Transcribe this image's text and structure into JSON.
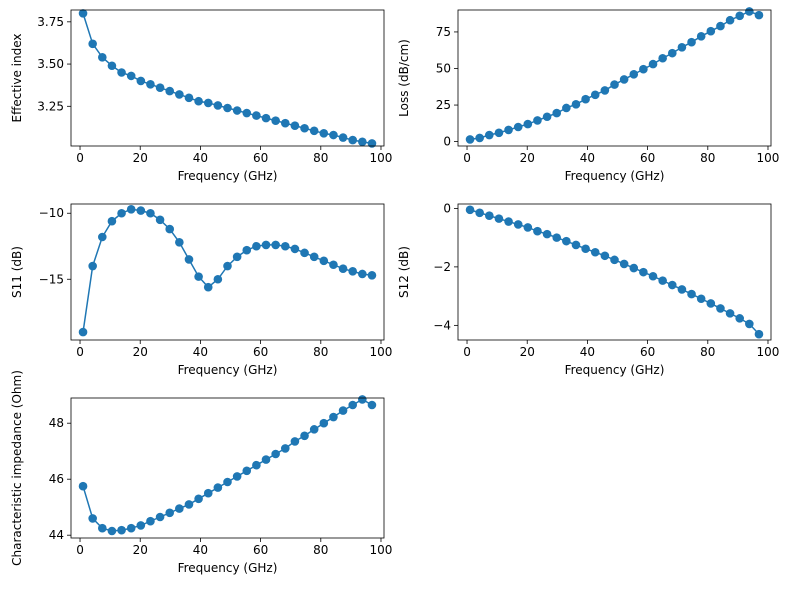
{
  "colors": {
    "series": "#1f77b4",
    "axes": "#000000",
    "background": "#ffffff"
  },
  "chart_data": [
    {
      "id": "effective-index",
      "type": "line",
      "markers": true,
      "xlabel": "Frequency (GHz)",
      "ylabel": "Effective index",
      "xlim": [
        -3,
        101
      ],
      "ylim": [
        3.015,
        3.82
      ],
      "xticks": [
        0,
        20,
        40,
        60,
        80,
        100
      ],
      "yticks": [
        3.25,
        3.5,
        3.75
      ],
      "ytick_labels": [
        "3.25",
        "3.50",
        "3.75"
      ],
      "x": [
        1,
        4.2,
        7.4,
        10.6,
        13.8,
        17,
        20.2,
        23.4,
        26.6,
        29.8,
        33,
        36.2,
        39.4,
        42.6,
        45.8,
        49,
        52.2,
        55.4,
        58.6,
        61.8,
        65,
        68.2,
        71.4,
        74.6,
        77.8,
        81,
        84.2,
        87.4,
        90.6,
        93.8,
        97
      ],
      "y": [
        3.8,
        3.62,
        3.54,
        3.49,
        3.45,
        3.43,
        3.4,
        3.38,
        3.36,
        3.34,
        3.32,
        3.3,
        3.28,
        3.27,
        3.255,
        3.24,
        3.225,
        3.21,
        3.195,
        3.18,
        3.165,
        3.15,
        3.135,
        3.12,
        3.105,
        3.09,
        3.08,
        3.065,
        3.05,
        3.04,
        3.03
      ]
    },
    {
      "id": "loss",
      "type": "line",
      "markers": true,
      "xlabel": "Frequency (GHz)",
      "ylabel": "Loss (dB/cm)",
      "xlim": [
        -3,
        101
      ],
      "ylim": [
        -3,
        90
      ],
      "xticks": [
        0,
        20,
        40,
        60,
        80,
        100
      ],
      "yticks": [
        0,
        25,
        50,
        75
      ],
      "ytick_labels": [
        "0",
        "25",
        "50",
        "75"
      ],
      "x": [
        1,
        4.2,
        7.4,
        10.6,
        13.8,
        17,
        20.2,
        23.4,
        26.6,
        29.8,
        33,
        36.2,
        39.4,
        42.6,
        45.8,
        49,
        52.2,
        55.4,
        58.6,
        61.8,
        65,
        68.2,
        71.4,
        74.6,
        77.8,
        81,
        84.2,
        87.4,
        90.6,
        93.8,
        97
      ],
      "y": [
        1.5,
        2.5,
        4.5,
        6,
        8,
        10,
        12,
        14.5,
        17,
        19.5,
        23,
        25.5,
        29,
        32,
        35,
        39,
        42.5,
        46,
        49.5,
        53,
        57,
        60.5,
        64.5,
        68,
        72,
        75.5,
        79,
        83,
        86,
        89,
        86.5
      ]
    },
    {
      "id": "s11",
      "type": "line",
      "markers": true,
      "xlabel": "Frequency (GHz)",
      "ylabel": "S11 (dB)",
      "xlim": [
        -3,
        101
      ],
      "ylim": [
        -19.6,
        -9.3
      ],
      "xticks": [
        0,
        20,
        40,
        60,
        80,
        100
      ],
      "yticks": [
        -15,
        -10
      ],
      "ytick_labels": [
        "−15",
        "−10"
      ],
      "x": [
        1,
        4.2,
        7.4,
        10.6,
        13.8,
        17,
        20.2,
        23.4,
        26.6,
        29.8,
        33,
        36.2,
        39.4,
        42.6,
        45.8,
        49,
        52.2,
        55.4,
        58.6,
        61.8,
        65,
        68.2,
        71.4,
        74.6,
        77.8,
        81,
        84.2,
        87.4,
        90.6,
        93.8,
        97
      ],
      "y": [
        -19.0,
        -14.0,
        -11.8,
        -10.6,
        -10.0,
        -9.7,
        -9.8,
        -10.0,
        -10.5,
        -11.2,
        -12.2,
        -13.5,
        -14.8,
        -15.6,
        -15.0,
        -14.0,
        -13.3,
        -12.8,
        -12.5,
        -12.4,
        -12.4,
        -12.5,
        -12.7,
        -13.0,
        -13.3,
        -13.6,
        -13.9,
        -14.2,
        -14.4,
        -14.6,
        -14.7
      ]
    },
    {
      "id": "s12",
      "type": "line",
      "markers": true,
      "xlabel": "Frequency (GHz)",
      "ylabel": "S12 (dB)",
      "xlim": [
        -3,
        101
      ],
      "ylim": [
        -4.5,
        0.15
      ],
      "xticks": [
        0,
        20,
        40,
        60,
        80,
        100
      ],
      "yticks": [
        -4,
        -2,
        0
      ],
      "ytick_labels": [
        "−4",
        "−2",
        "0"
      ],
      "x": [
        1,
        4.2,
        7.4,
        10.6,
        13.8,
        17,
        20.2,
        23.4,
        26.6,
        29.8,
        33,
        36.2,
        39.4,
        42.6,
        45.8,
        49,
        52.2,
        55.4,
        58.6,
        61.8,
        65,
        68.2,
        71.4,
        74.6,
        77.8,
        81,
        84.2,
        87.4,
        90.6,
        93.8,
        97
      ],
      "y": [
        -0.05,
        -0.15,
        -0.25,
        -0.35,
        -0.45,
        -0.55,
        -0.65,
        -0.78,
        -0.88,
        -1.0,
        -1.12,
        -1.25,
        -1.38,
        -1.5,
        -1.62,
        -1.76,
        -1.9,
        -2.04,
        -2.18,
        -2.32,
        -2.47,
        -2.62,
        -2.77,
        -2.93,
        -3.09,
        -3.25,
        -3.42,
        -3.59,
        -3.76,
        -3.95,
        -4.3
      ]
    },
    {
      "id": "impedance",
      "type": "line",
      "markers": true,
      "xlabel": "Frequency (GHz)",
      "ylabel": "Characteristic impedance (Ohm)",
      "xlim": [
        -3,
        101
      ],
      "ylim": [
        43.9,
        48.9
      ],
      "xticks": [
        0,
        20,
        40,
        60,
        80,
        100
      ],
      "yticks": [
        44,
        46,
        48
      ],
      "ytick_labels": [
        "44",
        "46",
        "48"
      ],
      "x": [
        1,
        4.2,
        7.4,
        10.6,
        13.8,
        17,
        20.2,
        23.4,
        26.6,
        29.8,
        33,
        36.2,
        39.4,
        42.6,
        45.8,
        49,
        52.2,
        55.4,
        58.6,
        61.8,
        65,
        68.2,
        71.4,
        74.6,
        77.8,
        81,
        84.2,
        87.4,
        90.6,
        93.8,
        97
      ],
      "y": [
        45.75,
        44.6,
        44.25,
        44.15,
        44.18,
        44.25,
        44.35,
        44.5,
        44.65,
        44.8,
        44.95,
        45.1,
        45.3,
        45.5,
        45.7,
        45.9,
        46.1,
        46.3,
        46.5,
        46.7,
        46.9,
        47.1,
        47.35,
        47.55,
        47.78,
        48.0,
        48.22,
        48.45,
        48.65,
        48.85,
        48.65
      ]
    }
  ]
}
